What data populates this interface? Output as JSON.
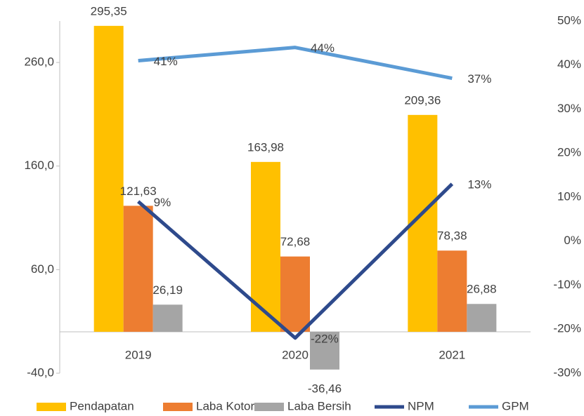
{
  "chart_data": {
    "type": "bar",
    "categories": [
      "2019",
      "2020",
      "2021"
    ],
    "ylim": [
      -40,
      300
    ],
    "yticks": [
      {
        "value": -40,
        "label": "-40,0"
      },
      {
        "value": 60,
        "label": "60,0"
      },
      {
        "value": 160,
        "label": "160,0"
      },
      {
        "value": 260,
        "label": "260,0"
      }
    ],
    "y2lim": [
      -30,
      50
    ],
    "y2ticks": [
      {
        "value": -30,
        "label": "-30%"
      },
      {
        "value": -20,
        "label": "-20%"
      },
      {
        "value": -10,
        "label": "-10%"
      },
      {
        "value": 0,
        "label": "0%"
      },
      {
        "value": 10,
        "label": "10%"
      },
      {
        "value": 20,
        "label": "20%"
      },
      {
        "value": 30,
        "label": "30%"
      },
      {
        "value": 40,
        "label": "40%"
      },
      {
        "value": 50,
        "label": "50%"
      }
    ],
    "legend": "bottom",
    "series": [
      {
        "name": "Pendapatan",
        "type": "bar",
        "color": "#FFC000",
        "values": [
          295.35,
          163.98,
          209.36
        ],
        "value_labels": [
          "295,35",
          "163,98",
          "209,36"
        ]
      },
      {
        "name": "Laba Kotor",
        "type": "bar",
        "color": "#ED7D31",
        "values": [
          121.63,
          72.68,
          78.38
        ],
        "value_labels": [
          "121,63",
          "72,68",
          "78,38"
        ]
      },
      {
        "name": "Laba Bersih",
        "type": "bar",
        "color": "#A5A5A5",
        "values": [
          26.19,
          -36.46,
          26.88
        ],
        "value_labels": [
          "26,19",
          "-36,46",
          "26,88"
        ]
      },
      {
        "name": "NPM",
        "type": "line",
        "axis": "y2",
        "color": "#2E4A8C",
        "values": [
          9,
          -22,
          13
        ],
        "value_labels": [
          "9%",
          "-22%",
          "13%"
        ]
      },
      {
        "name": "GPM",
        "type": "line",
        "axis": "y2",
        "color": "#5B9BD5",
        "values": [
          41,
          44,
          37
        ],
        "value_labels": [
          "41%",
          "44%",
          "37%"
        ]
      }
    ]
  }
}
